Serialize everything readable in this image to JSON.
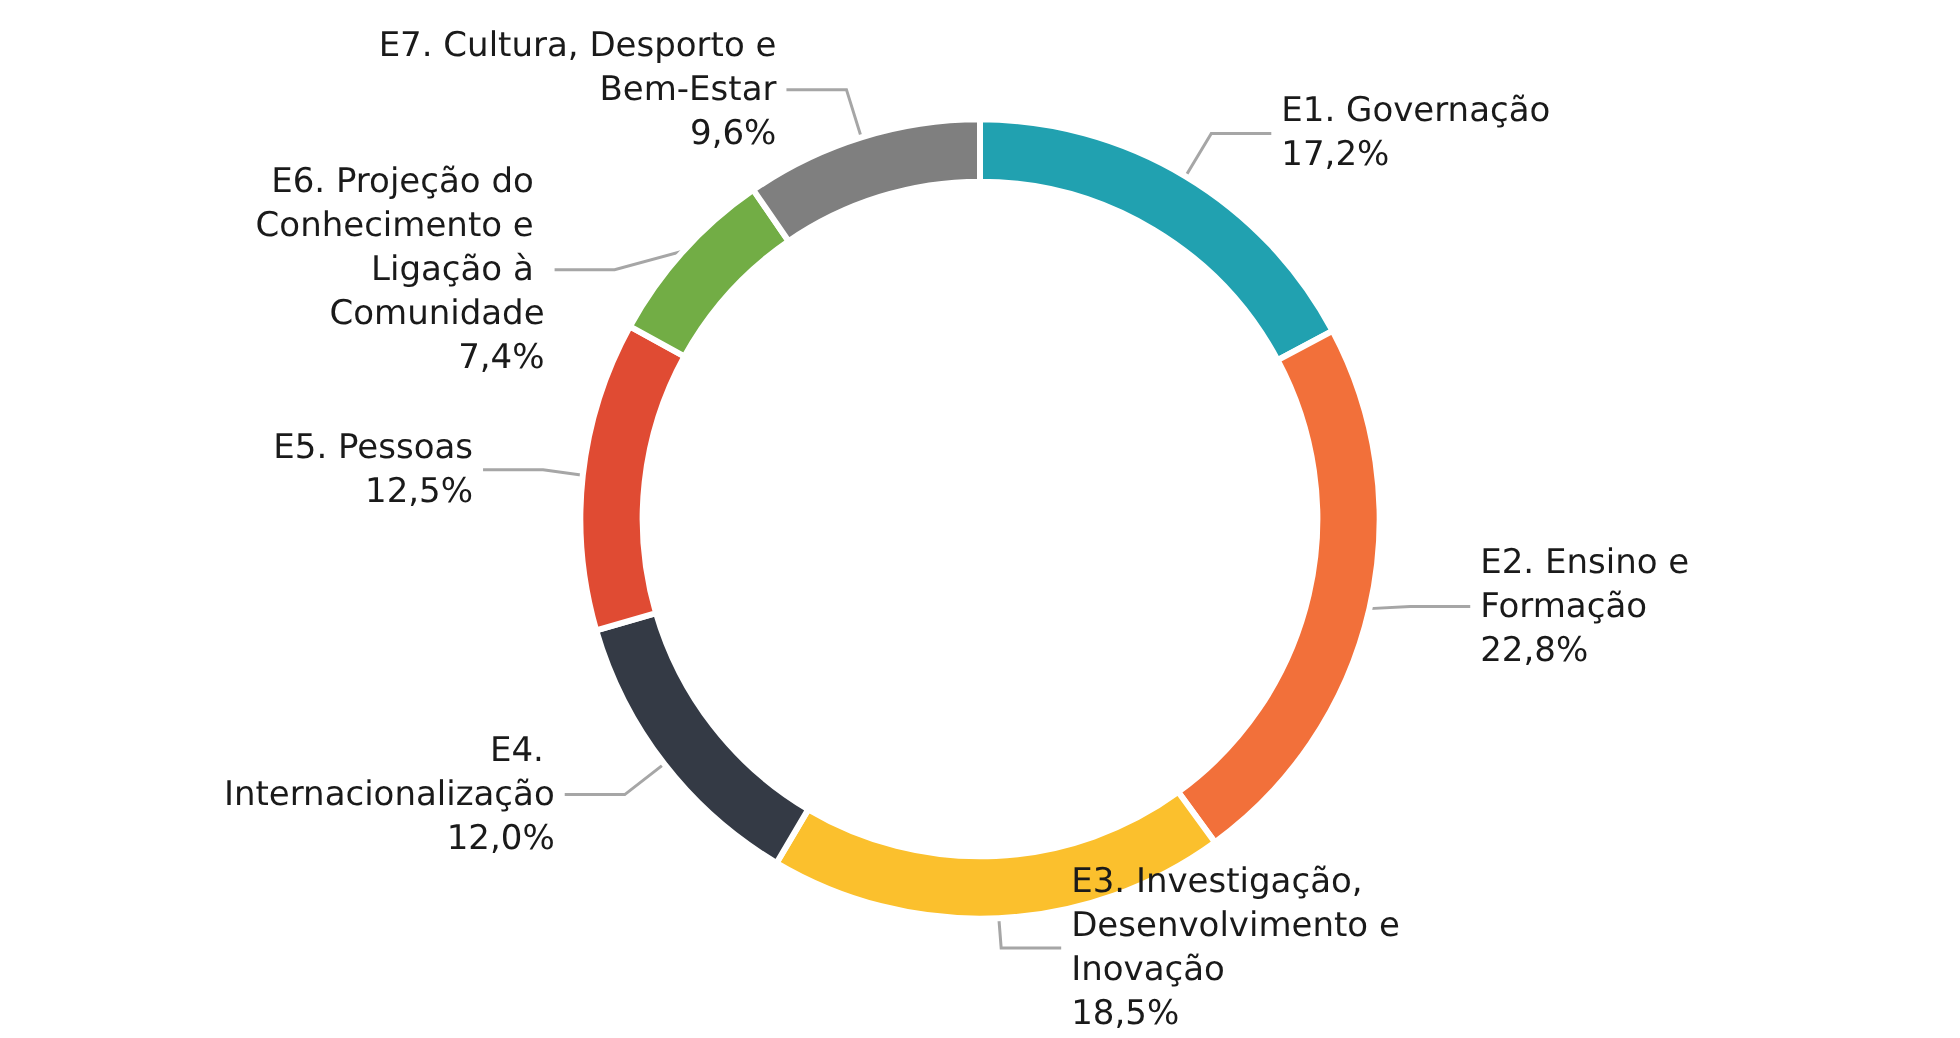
{
  "chart_data": {
    "type": "donut",
    "categories": [
      "E1. Governação",
      "E2. Ensino e Formação",
      "E3. Investigação, Desenvolvimento e Inovação",
      "E4. Internacionalização",
      "E5. Pessoas",
      "E6. Projeção do Conhecimento e Ligação à Comunidade",
      "E7. Cultura, Desporto e Bem-Estar"
    ],
    "values": [
      17.2,
      22.8,
      18.5,
      12.0,
      12.5,
      7.4,
      9.6
    ],
    "value_labels": [
      "17,2%",
      "22,8%",
      "18,5%",
      "12,0%",
      "12,5%",
      "7,4%",
      "9,6%"
    ],
    "colors": [
      "#21a1b0",
      "#f2703a",
      "#fbc02d",
      "#343a45",
      "#e04b33",
      "#72ad45",
      "#7f7f7f"
    ],
    "legend": false
  }
}
